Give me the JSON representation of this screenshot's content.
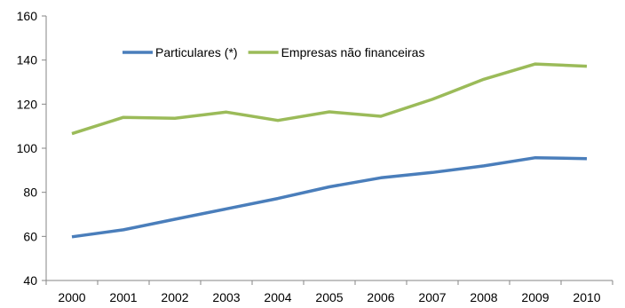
{
  "chart_data": {
    "type": "line",
    "x": [
      "2000",
      "2001",
      "2002",
      "2003",
      "2004",
      "2005",
      "2006",
      "2007",
      "2008",
      "2009",
      "2010"
    ],
    "series": [
      {
        "name": "Particulares (*)",
        "color": "#4a7ebb",
        "values": [
          59.8,
          63.0,
          67.8,
          72.5,
          77.2,
          82.5,
          86.6,
          89.0,
          92.0,
          95.7,
          95.3
        ]
      },
      {
        "name": "Empresas não financeiras",
        "color": "#9bbb59",
        "values": [
          106.6,
          114.0,
          113.6,
          116.4,
          112.6,
          116.5,
          114.5,
          122.2,
          131.3,
          138.2,
          137.2
        ]
      }
    ],
    "ylim": [
      40,
      160
    ],
    "yticks": [
      40,
      60,
      80,
      100,
      120,
      140,
      160
    ],
    "grid": false,
    "legend_position": "top-center",
    "title": "",
    "xlabel": "",
    "ylabel": ""
  }
}
